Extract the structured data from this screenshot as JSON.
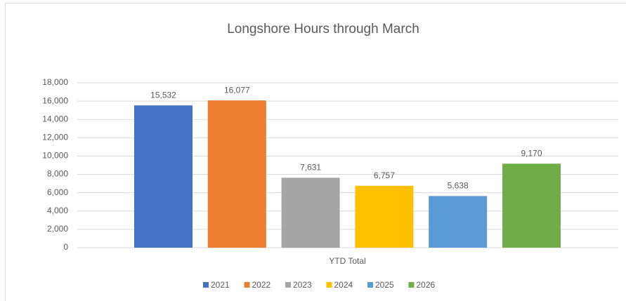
{
  "chart_data": {
    "type": "bar",
    "title": "Longshore Hours through March",
    "categories": [
      "YTD Total"
    ],
    "series": [
      {
        "name": "2021",
        "color": "#4472c4",
        "values": [
          15532
        ],
        "value_labels": [
          "15,532"
        ]
      },
      {
        "name": "2022",
        "color": "#ed7d31",
        "values": [
          16077
        ],
        "value_labels": [
          "16,077"
        ]
      },
      {
        "name": "2023",
        "color": "#a5a5a5",
        "values": [
          7631
        ],
        "value_labels": [
          "7,631"
        ]
      },
      {
        "name": "2024",
        "color": "#ffc000",
        "values": [
          6757
        ],
        "value_labels": [
          "6,757"
        ]
      },
      {
        "name": "2025",
        "color": "#5b9bd5",
        "values": [
          5638
        ],
        "value_labels": [
          "5,638"
        ]
      },
      {
        "name": "2026",
        "color": "#70ad47",
        "values": [
          9170
        ],
        "value_labels": [
          "9,170"
        ]
      }
    ],
    "ylim": [
      0,
      18000
    ],
    "yticks": [
      0,
      {
        "value": 2000,
        "label": "2,000"
      },
      {
        "value": 4000,
        "label": "4,000"
      },
      {
        "value": 6000,
        "label": "6,000"
      },
      {
        "value": 8000,
        "label": "8,000"
      },
      {
        "value": 10000,
        "label": "10,000"
      },
      {
        "value": 12000,
        "label": "12,000"
      },
      {
        "value": 14000,
        "label": "14,000"
      },
      {
        "value": 16000,
        "label": "16,000"
      },
      {
        "value": 18000,
        "label": "18,000"
      }
    ],
    "grid": true,
    "legend": "bottom"
  }
}
